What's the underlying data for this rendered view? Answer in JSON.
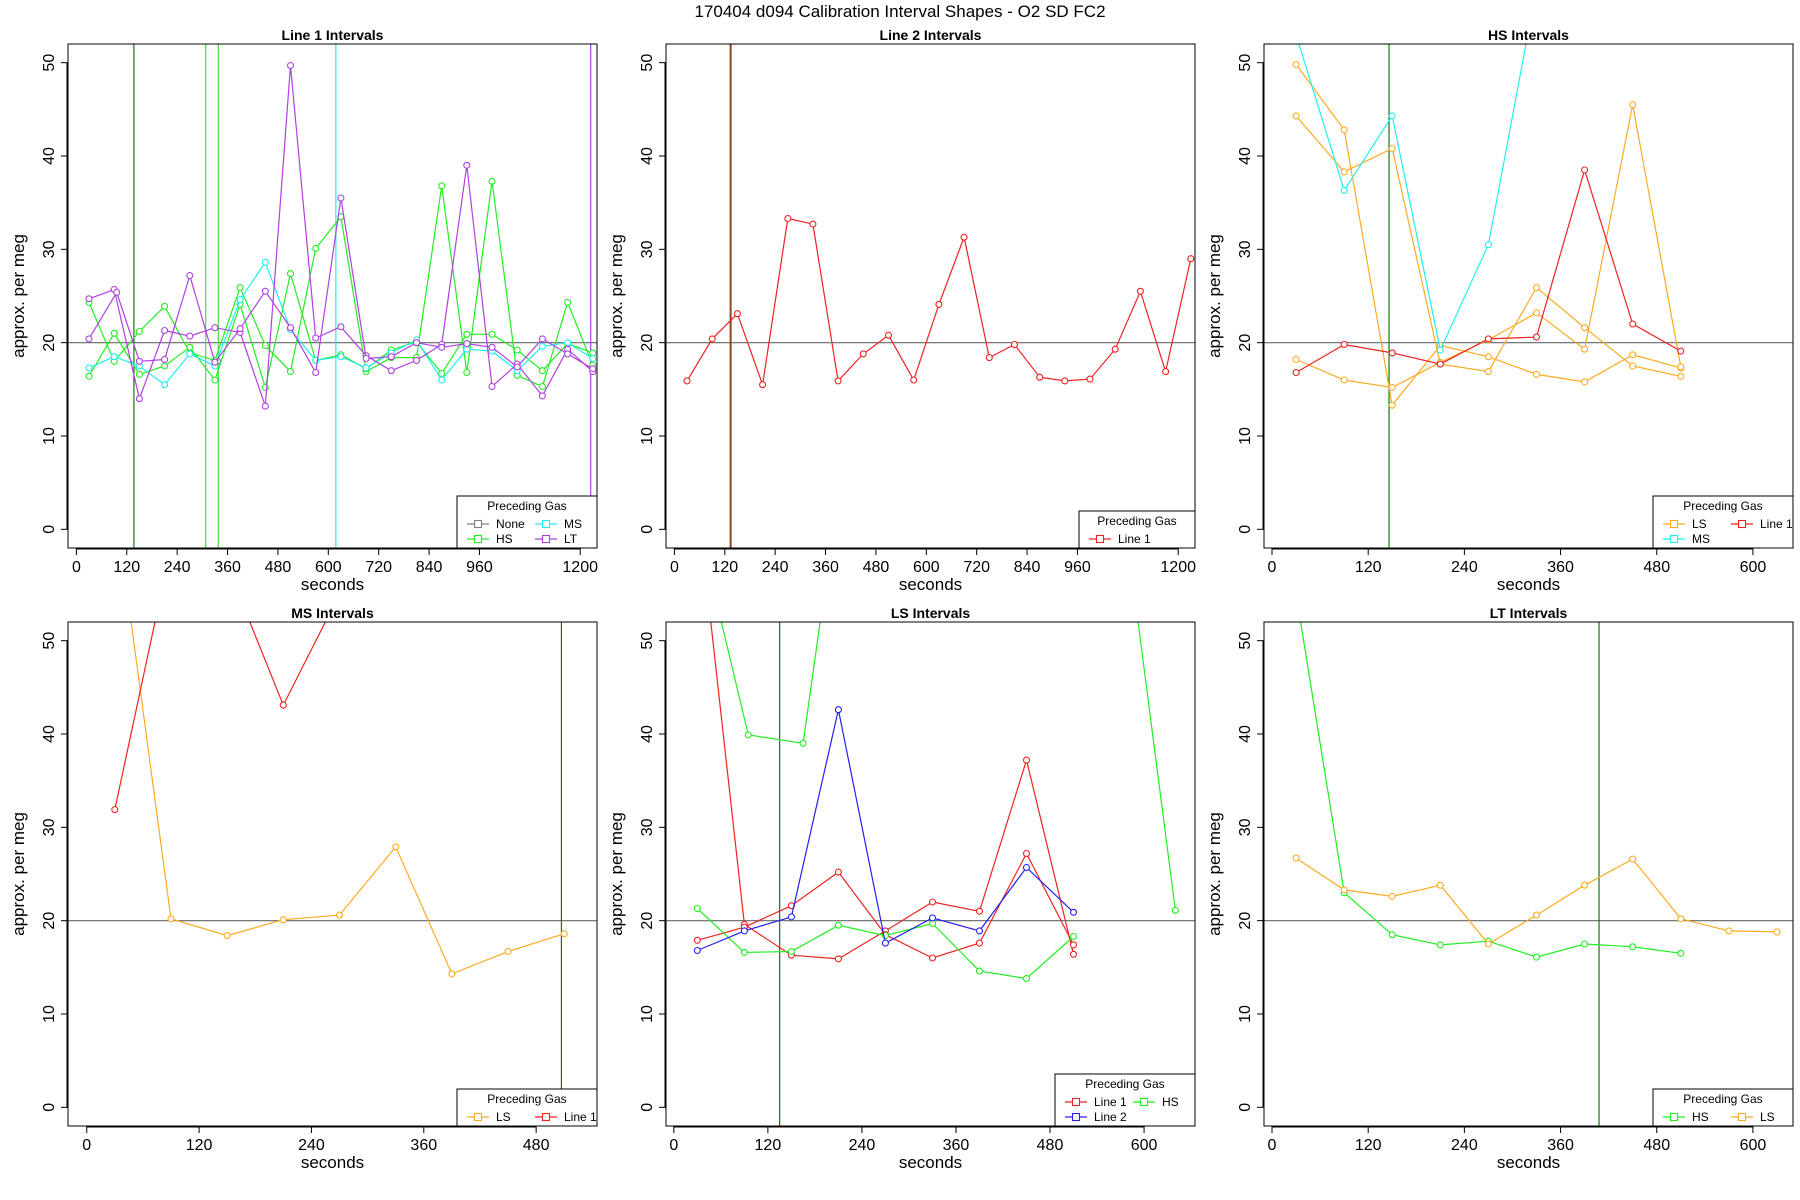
{
  "figure_title": "170404   d094   Calibration Interval Shapes - O2 SD FC2",
  "colors": {
    "None": "#7f7f7f",
    "HS": "#22ee22",
    "MS": "#22eeee",
    "LT": "#b040e0",
    "LS": "#ffaa22",
    "Line 1": "#ee2222",
    "Line 2": "#2222ee",
    "refline": "#666666",
    "vline_dark": "#117711",
    "vline_light": "#44dd44"
  },
  "chart_data": [
    {
      "type": "line",
      "title": "Line 1 Intervals",
      "xlabel": "seconds",
      "ylabel": "approx. per meg",
      "xlim": [
        -20,
        1240
      ],
      "ylim": [
        -2,
        52
      ],
      "xticks": [
        0,
        120,
        240,
        360,
        480,
        600,
        720,
        840,
        960,
        1200
      ],
      "yticks": [
        0,
        10,
        20,
        30,
        40,
        50
      ],
      "hline": 20,
      "vlines": [
        {
          "x": 137,
          "color": "vline_dark"
        },
        {
          "x": 308,
          "color": "vline_light"
        },
        {
          "x": 338,
          "color": "vline_light"
        },
        {
          "x": 618,
          "color": "MS"
        },
        {
          "x": 1225,
          "color": "LT"
        }
      ],
      "legend": {
        "title": "Preceding Gas",
        "entries": [
          "None",
          "HS",
          "MS",
          "LT"
        ],
        "columns": 2,
        "position": "bottom-right"
      },
      "series": [
        {
          "name": "None",
          "x": [
            336
          ],
          "y": [
            18.0
          ]
        },
        {
          "name": "HS",
          "x": [
            30,
            90,
            150,
            210,
            270,
            330,
            390,
            450,
            510,
            570,
            630,
            690,
            750,
            810,
            870,
            930,
            990,
            1050,
            1110,
            1170,
            1230,
            30,
            90,
            150,
            210,
            270,
            330,
            390,
            450,
            510,
            570,
            630,
            690,
            750,
            810,
            870,
            930,
            990,
            1050,
            1110,
            1170,
            1230
          ],
          "y": [
            24.3,
            18.0,
            21.2,
            23.9,
            18.9,
            18.1,
            25.9,
            19.7,
            16.9,
            30.1,
            33.5,
            16.9,
            18.4,
            18.4,
            36.8,
            16.8,
            37.3,
            16.5,
            15.3,
            24.3,
            17.6,
            16.4,
            21.0,
            16.6,
            17.5,
            19.5,
            16.0,
            24.1,
            15.2,
            27.4,
            18.1,
            18.7,
            17.2,
            19.2,
            20.1,
            16.7,
            20.9,
            20.9,
            19.2,
            17.0,
            19.9,
            18.9
          ]
        },
        {
          "name": "MS",
          "x": [
            30,
            90,
            150,
            210,
            270,
            330,
            390,
            450,
            510,
            570,
            630,
            690,
            750,
            810,
            870,
            930,
            990,
            1050,
            1110,
            1170,
            1230
          ],
          "y": [
            17.3,
            18.5,
            17.5,
            15.5,
            18.8,
            17.5,
            24.6,
            28.6,
            21.4,
            18.1,
            18.5,
            17.3,
            18.9,
            20.3,
            16.0,
            19.3,
            19.1,
            17.0,
            19.6,
            20.0,
            18.3
          ]
        },
        {
          "name": "LT",
          "x": [
            30,
            90,
            150,
            210,
            270,
            330,
            390,
            450,
            510,
            570,
            630,
            690,
            750,
            810,
            870,
            930,
            990,
            1050,
            1110,
            1170,
            1230,
            30,
            96,
            150,
            210,
            270,
            330,
            390,
            450,
            510,
            570,
            630,
            690,
            750,
            810,
            870,
            930,
            990,
            1050,
            1110,
            1170,
            1230
          ],
          "y": [
            24.7,
            25.7,
            14.0,
            21.3,
            20.7,
            21.6,
            21.1,
            13.2,
            49.7,
            20.5,
            21.7,
            18.6,
            17.0,
            18.1,
            19.8,
            39.0,
            15.3,
            17.7,
            14.3,
            19.3,
            16.9,
            20.4,
            25.4,
            18.0,
            18.2,
            27.2,
            17.9,
            21.5,
            25.5,
            21.6,
            16.8,
            35.5,
            18.3,
            18.5,
            20.0,
            19.5,
            19.9,
            19.5,
            17.4,
            20.4,
            18.8,
            17.2
          ]
        }
      ]
    },
    {
      "type": "line",
      "title": "Line 2 Intervals",
      "xlabel": "seconds",
      "ylabel": "approx. per meg",
      "xlim": [
        -20,
        1240
      ],
      "ylim": [
        -2,
        52
      ],
      "xticks": [
        0,
        120,
        240,
        360,
        480,
        600,
        720,
        840,
        960,
        1200
      ],
      "yticks": [
        0,
        10,
        20,
        30,
        40,
        50
      ],
      "hline": 20,
      "vlines": [
        {
          "x": 133,
          "color": "vline_dark"
        },
        {
          "x": 135,
          "color": "Line 1"
        }
      ],
      "legend": {
        "title": "Preceding Gas",
        "entries": [
          "Line 1"
        ],
        "columns": 1,
        "position": "bottom-right"
      },
      "series": [
        {
          "name": "Line 1",
          "x": [
            30,
            90,
            150,
            210,
            270,
            330,
            390,
            450,
            510,
            570,
            630,
            690,
            750,
            810,
            870,
            930,
            990,
            1050,
            1110,
            1170,
            1230
          ],
          "y": [
            15.9,
            20.4,
            23.1,
            15.5,
            33.3,
            32.7,
            15.9,
            18.8,
            20.8,
            16.0,
            24.1,
            31.3,
            18.4,
            19.8,
            16.3,
            15.9,
            16.1,
            19.3,
            25.5,
            16.9,
            29.0
          ]
        }
      ]
    },
    {
      "type": "line",
      "title": "HS Intervals",
      "xlabel": "seconds",
      "ylabel": "approx. per meg",
      "xlim": [
        -10,
        650
      ],
      "ylim": [
        -2,
        52
      ],
      "xticks": [
        0,
        120,
        240,
        360,
        480,
        600
      ],
      "yticks": [
        0,
        10,
        20,
        30,
        40,
        50
      ],
      "hline": 20,
      "vlines": [
        {
          "x": 146,
          "color": "vline_dark"
        }
      ],
      "legend": {
        "title": "Preceding Gas",
        "entries": [
          "LS",
          "MS",
          "Line 1"
        ],
        "columns": 2,
        "position": "bottom-right"
      },
      "series": [
        {
          "name": "LS",
          "x": [
            30,
            90,
            150,
            210,
            270,
            330,
            390,
            450,
            510,
            30,
            90,
            150,
            210,
            270,
            330,
            390,
            450,
            510,
            30,
            90,
            150,
            210,
            270,
            330,
            390,
            450,
            510
          ],
          "y": [
            49.8,
            42.8,
            13.3,
            19.7,
            18.5,
            16.6,
            15.8,
            18.7,
            17.3,
            44.3,
            38.3,
            40.8,
            17.7,
            16.9,
            25.9,
            21.6,
            17.5,
            16.4,
            18.2,
            16.0,
            15.2,
            17.9,
            20.3,
            23.2,
            19.3,
            45.5,
            17.4
          ]
        },
        {
          "name": "MS",
          "x": [
            30,
            90,
            150,
            210,
            270,
            330
          ],
          "y": [
            53.0,
            36.3,
            44.3,
            19.2,
            30.5,
            58.0
          ]
        },
        {
          "name": "Line 1",
          "x": [
            30,
            90,
            150,
            210,
            270,
            330,
            390,
            450,
            510
          ],
          "y": [
            16.8,
            19.8,
            18.9,
            17.7,
            20.4,
            20.6,
            38.5,
            22.0,
            19.1
          ]
        }
      ]
    },
    {
      "type": "line",
      "title": "MS Intervals",
      "xlabel": "seconds",
      "ylabel": "approx. per meg",
      "xlim": [
        -20,
        545
      ],
      "ylim": [
        -2,
        52
      ],
      "xticks": [
        0,
        120,
        240,
        360,
        480
      ],
      "yticks": [
        0,
        10,
        20,
        30,
        40,
        50
      ],
      "hline": 20,
      "vlines": [
        {
          "x": 507,
          "color": "vline_dark"
        }
      ],
      "legend": {
        "title": "Preceding Gas",
        "entries": [
          "LS",
          "Line 1"
        ],
        "columns": 2,
        "position": "bottom-right"
      },
      "series": [
        {
          "name": "LS",
          "x": [
            30,
            90,
            150,
            210,
            270,
            330,
            390,
            450,
            510
          ],
          "y": [
            65.0,
            20.2,
            18.4,
            20.1,
            20.6,
            27.9,
            14.3,
            16.7,
            18.6
          ]
        },
        {
          "name": "Line 1",
          "x": [
            30,
            90,
            150,
            210,
            270
          ],
          "y": [
            31.9,
            60.0,
            58.0,
            43.1,
            55.0
          ]
        }
      ]
    },
    {
      "type": "line",
      "title": "LS Intervals",
      "xlabel": "seconds",
      "ylabel": "approx. per meg",
      "xlim": [
        -10,
        665
      ],
      "ylim": [
        -2,
        52
      ],
      "xticks": [
        0,
        120,
        240,
        360,
        480,
        600
      ],
      "yticks": [
        0,
        10,
        20,
        30,
        40,
        50
      ],
      "hline": 20,
      "vlines": [
        {
          "x": 135,
          "color": "vline_dark"
        }
      ],
      "legend": {
        "title": "Preceding Gas",
        "entries": [
          "Line 1",
          "Line 2",
          "HS"
        ],
        "columns": 2,
        "position": "bottom-right"
      },
      "series": [
        {
          "name": "Line 1",
          "x": [
            30,
            90,
            150,
            210,
            270,
            330,
            390,
            450,
            510,
            30,
            90,
            150,
            210,
            270,
            330,
            390,
            450,
            510
          ],
          "y": [
            65.0,
            19.6,
            16.3,
            15.9,
            18.9,
            22.0,
            21.0,
            37.2,
            16.4,
            17.9,
            19.3,
            21.6,
            25.2,
            18.5,
            16.0,
            17.6,
            27.2,
            17.4
          ]
        },
        {
          "name": "HS",
          "x": [
            30,
            90,
            150,
            210,
            270,
            330,
            390,
            450,
            510,
            55,
            95,
            165,
            200,
            580,
            640
          ],
          "y": [
            21.3,
            16.6,
            16.7,
            19.5,
            18.4,
            19.7,
            14.6,
            13.8,
            18.3,
            54.0,
            39.9,
            39.0,
            60.0,
            60.0,
            21.1
          ]
        },
        {
          "name": "Line 2",
          "x": [
            30,
            90,
            150,
            210,
            270,
            330,
            390,
            450,
            510
          ],
          "y": [
            16.8,
            18.9,
            20.4,
            42.6,
            17.6,
            20.3,
            18.9,
            25.7,
            20.9
          ]
        }
      ]
    },
    {
      "type": "line",
      "title": "LT Intervals",
      "xlabel": "seconds",
      "ylabel": "approx. per meg",
      "xlim": [
        -10,
        650
      ],
      "ylim": [
        -2,
        52
      ],
      "xticks": [
        0,
        120,
        240,
        360,
        480,
        600
      ],
      "yticks": [
        0,
        10,
        20,
        30,
        40,
        50
      ],
      "hline": 20,
      "vlines": [
        {
          "x": 408,
          "color": "vline_dark"
        }
      ],
      "legend": {
        "title": "Preceding Gas",
        "entries": [
          "HS",
          "LS"
        ],
        "columns": 2,
        "position": "bottom-right"
      },
      "series": [
        {
          "name": "HS",
          "x": [
            30,
            90,
            150,
            210,
            270,
            330,
            390,
            450,
            510
          ],
          "y": [
            55.0,
            23.0,
            18.5,
            17.4,
            17.8,
            16.1,
            17.5,
            17.2,
            16.5
          ]
        },
        {
          "name": "LS",
          "x": [
            30,
            90,
            150,
            210,
            270,
            330,
            390,
            450,
            510,
            570,
            630
          ],
          "y": [
            26.7,
            23.3,
            22.6,
            23.8,
            17.5,
            20.6,
            23.8,
            26.6,
            20.2,
            18.9,
            18.8
          ]
        }
      ]
    }
  ]
}
